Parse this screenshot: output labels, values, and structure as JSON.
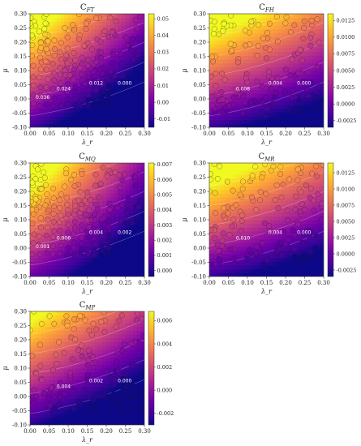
{
  "figure": {
    "colormap": [
      "#0d0887",
      "#46039f",
      "#7201a8",
      "#9c179e",
      "#bd3786",
      "#d8576b",
      "#ed7953",
      "#fb9f3a",
      "#fdca26",
      "#f0f921"
    ]
  },
  "chart_data": [
    {
      "type": "heatmap",
      "title": "C_FT",
      "title_main": "C",
      "title_sub": "FT",
      "xlabel": "λ_r",
      "ylabel": "μ",
      "xlim": [
        0.0,
        0.3
      ],
      "ylim": [
        -0.1,
        0.3
      ],
      "xticks": [
        "0.00",
        "0.05",
        "0.10",
        "0.15",
        "0.20",
        "0.25",
        "0.30"
      ],
      "yticks": [
        "-0.10",
        "-0.05",
        "0.00",
        "0.05",
        "0.10",
        "0.15",
        "0.20",
        "0.25",
        "0.30"
      ],
      "cbar_range": [
        -0.015,
        0.053
      ],
      "cbar_ticks": [
        "0.05",
        "0.04",
        "0.03",
        "0.02",
        "0.01",
        "0.00",
        "-0.01"
      ],
      "cbar_tick_values": [
        0.05,
        0.04,
        0.03,
        0.02,
        0.01,
        0.0,
        -0.01
      ],
      "contour_labels": [
        "0.024",
        "0.012",
        "0.000",
        "0.036"
      ],
      "contour_label_values": [
        0.024,
        0.012,
        0.0,
        0.036
      ],
      "field": {
        "type": "ft"
      },
      "scatter": {
        "type": "ft"
      }
    },
    {
      "type": "heatmap",
      "title": "C_FH",
      "title_main": "C",
      "title_sub": "FH",
      "xlabel": "λ_r",
      "ylabel": "μ",
      "xlim": [
        0.0,
        0.3
      ],
      "ylim": [
        -0.1,
        0.3
      ],
      "xticks": [
        "0.00",
        "0.05",
        "0.10",
        "0.15",
        "0.20",
        "0.25",
        "0.30"
      ],
      "yticks": [
        "-0.10",
        "-0.05",
        "0.00",
        "0.05",
        "0.10",
        "0.15",
        "0.20",
        "0.25",
        "0.30"
      ],
      "cbar_range": [
        -0.0035,
        0.0135
      ],
      "cbar_ticks": [
        "0.0125",
        "0.0100",
        "0.0075",
        "0.0050",
        "0.0025",
        "0.0000",
        "-0.0025"
      ],
      "cbar_tick_values": [
        0.0125,
        0.01,
        0.0075,
        0.005,
        0.0025,
        0.0,
        -0.0025
      ],
      "contour_labels": [
        "0.008",
        "0.004",
        "0.000"
      ],
      "contour_label_values": [
        0.008,
        0.004,
        0.0
      ],
      "field": {
        "type": "fh"
      },
      "scatter": {
        "type": "grid"
      }
    },
    {
      "type": "heatmap",
      "title": "C_MQ",
      "title_main": "C",
      "title_sub": "MQ",
      "xlabel": "λ_r",
      "ylabel": "μ",
      "xlim": [
        0.0,
        0.3
      ],
      "ylim": [
        -0.1,
        0.3
      ],
      "xticks": [
        "0.00",
        "0.05",
        "0.10",
        "0.15",
        "0.20",
        "0.25",
        "0.30"
      ],
      "yticks": [
        "-0.10",
        "-0.05",
        "0.00",
        "0.05",
        "0.10",
        "0.15",
        "0.20",
        "0.25",
        "0.30"
      ],
      "cbar_range": [
        -0.0004,
        0.0071
      ],
      "cbar_ticks": [
        "0.007",
        "0.006",
        "0.005",
        "0.004",
        "0.003",
        "0.002",
        "0.001",
        "0.000"
      ],
      "cbar_tick_values": [
        0.007,
        0.006,
        0.005,
        0.004,
        0.003,
        0.002,
        0.001,
        0.0
      ],
      "contour_labels": [
        "0.006",
        "0.004",
        "0.002",
        "0.001"
      ],
      "contour_label_values": [
        0.006,
        0.004,
        0.002,
        0.001
      ],
      "field": {
        "type": "mq"
      },
      "scatter": {
        "type": "ft"
      }
    },
    {
      "type": "heatmap",
      "title": "C_MR",
      "title_main": "C",
      "title_sub": "MR",
      "xlabel": "λ_r",
      "ylabel": "μ",
      "xlim": [
        0.0,
        0.3
      ],
      "ylim": [
        -0.1,
        0.3
      ],
      "xticks": [
        "0.00",
        "0.05",
        "0.10",
        "0.15",
        "0.20",
        "0.25",
        "0.30"
      ],
      "yticks": [
        "-0.10",
        "-0.05",
        "0.00",
        "0.05",
        "0.10",
        "0.15",
        "0.20",
        "0.25",
        "0.30"
      ],
      "cbar_range": [
        -0.0035,
        0.014
      ],
      "cbar_ticks": [
        "0.0125",
        "0.0100",
        "0.0075",
        "0.0050",
        "0.0025",
        "0.0000",
        "-0.0025"
      ],
      "cbar_tick_values": [
        0.0125,
        0.01,
        0.0075,
        0.005,
        0.0025,
        0.0,
        -0.0025
      ],
      "contour_labels": [
        "0.010",
        "0.004",
        "0.000"
      ],
      "contour_label_values": [
        0.01,
        0.004,
        0.0
      ],
      "field": {
        "type": "fh"
      },
      "scatter": {
        "type": "grid"
      }
    },
    {
      "type": "heatmap",
      "title": "C_MP",
      "title_main": "C",
      "title_sub": "MP",
      "xlabel": "λ_r",
      "ylabel": "μ",
      "xlim": [
        0.0,
        0.3
      ],
      "ylim": [
        -0.1,
        0.3
      ],
      "xticks": [
        "0.00",
        "0.05",
        "0.10",
        "0.15",
        "0.20",
        "0.25",
        "0.30"
      ],
      "yticks": [
        "-0.10",
        "-0.05",
        "0.00",
        "0.05",
        "0.10",
        "0.15",
        "0.20",
        "0.25",
        "0.30"
      ],
      "cbar_range": [
        -0.003,
        0.0068
      ],
      "cbar_ticks": [
        "0.006",
        "0.004",
        "0.002",
        "0.000",
        "-0.002"
      ],
      "cbar_tick_values": [
        0.006,
        0.004,
        0.002,
        0.0,
        -0.002
      ],
      "contour_labels": [
        "0.004",
        "0.002",
        "0.000"
      ],
      "contour_label_values": [
        0.004,
        0.002,
        0.0
      ],
      "field": {
        "type": "mp"
      },
      "scatter": {
        "type": "grid"
      }
    }
  ]
}
